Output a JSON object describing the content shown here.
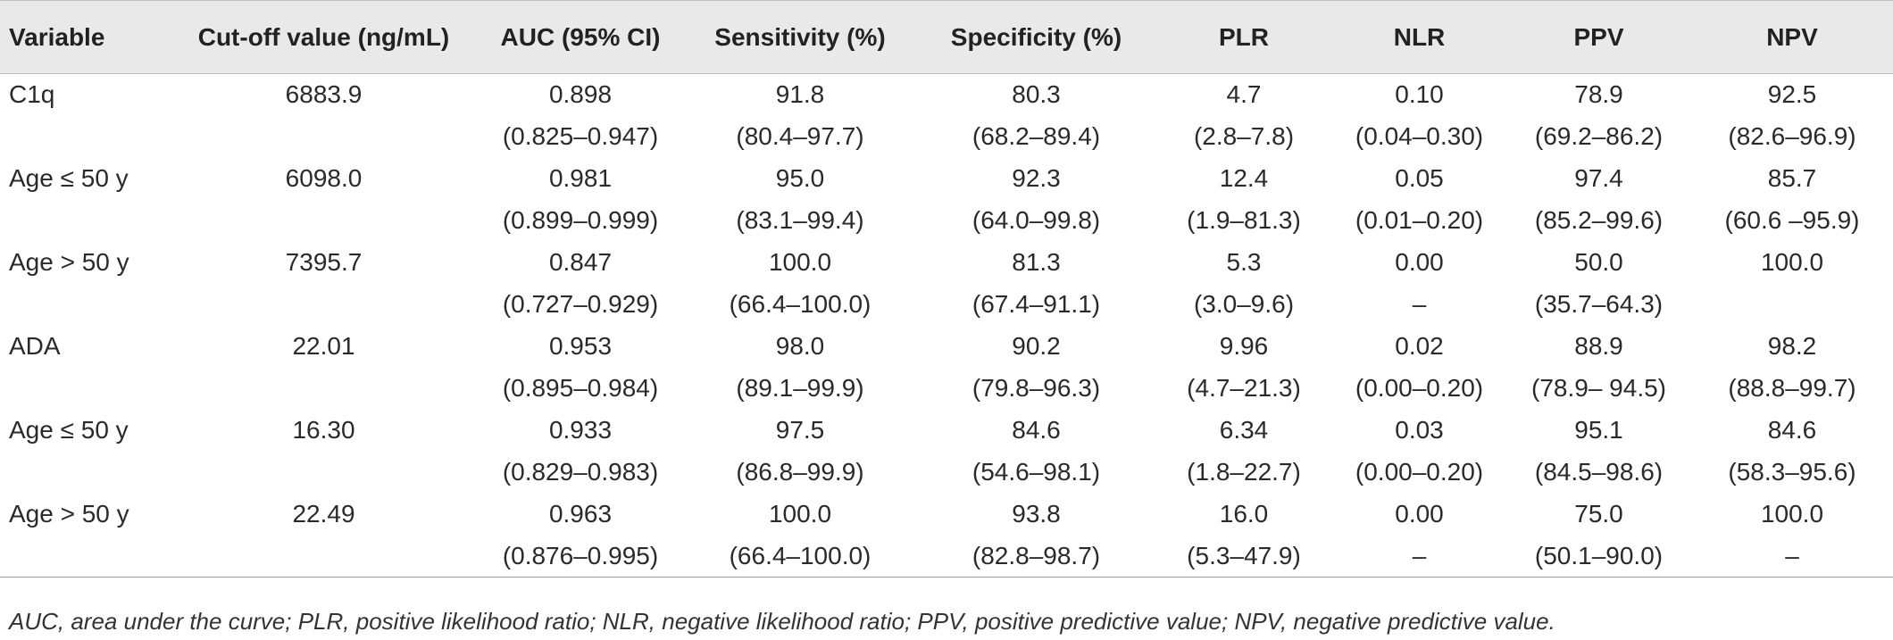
{
  "table": {
    "headers": [
      "Variable",
      "Cut-off value (ng/mL)",
      "AUC (95% CI)",
      "Sensitivity (%)",
      "Specificity (%)",
      "PLR",
      "NLR",
      "PPV",
      "NPV"
    ],
    "rows": [
      {
        "values": [
          "C1q",
          "6883.9",
          "0.898",
          "91.8",
          "80.3",
          "4.7",
          "0.10",
          "78.9",
          "92.5"
        ],
        "ci": [
          "",
          "",
          "(0.825–0.947)",
          "(80.4–97.7)",
          "(68.2–89.4)",
          "(2.8–7.8)",
          "(0.04–0.30)",
          "(69.2–86.2)",
          "(82.6–96.9)"
        ]
      },
      {
        "values": [
          "Age ≤ 50 y",
          "6098.0",
          "0.981",
          "95.0",
          "92.3",
          "12.4",
          "0.05",
          "97.4",
          "85.7"
        ],
        "ci": [
          "",
          "",
          "(0.899–0.999)",
          "(83.1–99.4)",
          "(64.0–99.8)",
          "(1.9–81.3)",
          "(0.01–0.20)",
          "(85.2–99.6)",
          "(60.6 –95.9)"
        ]
      },
      {
        "values": [
          "Age > 50 y",
          "7395.7",
          "0.847",
          "100.0",
          "81.3",
          "5.3",
          "0.00",
          "50.0",
          "100.0"
        ],
        "ci": [
          "",
          "",
          "(0.727–0.929)",
          "(66.4–100.0)",
          "(67.4–91.1)",
          "(3.0–9.6)",
          "–",
          "(35.7–64.3)",
          ""
        ]
      },
      {
        "values": [
          "ADA",
          "22.01",
          "0.953",
          "98.0",
          "90.2",
          "9.96",
          "0.02",
          "88.9",
          "98.2"
        ],
        "ci": [
          "",
          "",
          "(0.895–0.984)",
          "(89.1–99.9)",
          "(79.8–96.3)",
          "(4.7–21.3)",
          "(0.00–0.20)",
          "(78.9– 94.5)",
          "(88.8–99.7)"
        ]
      },
      {
        "values": [
          "Age ≤ 50 y",
          "16.30",
          "0.933",
          "97.5",
          "84.6",
          "6.34",
          "0.03",
          "95.1",
          "84.6"
        ],
        "ci": [
          "",
          "",
          "(0.829–0.983)",
          "(86.8–99.9)",
          "(54.6–98.1)",
          "(1.8–22.7)",
          "(0.00–0.20)",
          "(84.5–98.6)",
          "(58.3–95.6)"
        ]
      },
      {
        "values": [
          "Age > 50 y",
          "22.49",
          "0.963",
          "100.0",
          "93.8",
          "16.0",
          "0.00",
          "75.0",
          "100.0"
        ],
        "ci": [
          "",
          "",
          "(0.876–0.995)",
          "(66.4–100.0)",
          "(82.8–98.7)",
          "(5.3–47.9)",
          "–",
          "(50.1–90.0)",
          "–"
        ]
      }
    ]
  },
  "footnote": "AUC, area under the curve; PLR, positive likelihood ratio; NLR, negative likelihood ratio; PPV, positive predictive value; NPV, negative predictive value."
}
